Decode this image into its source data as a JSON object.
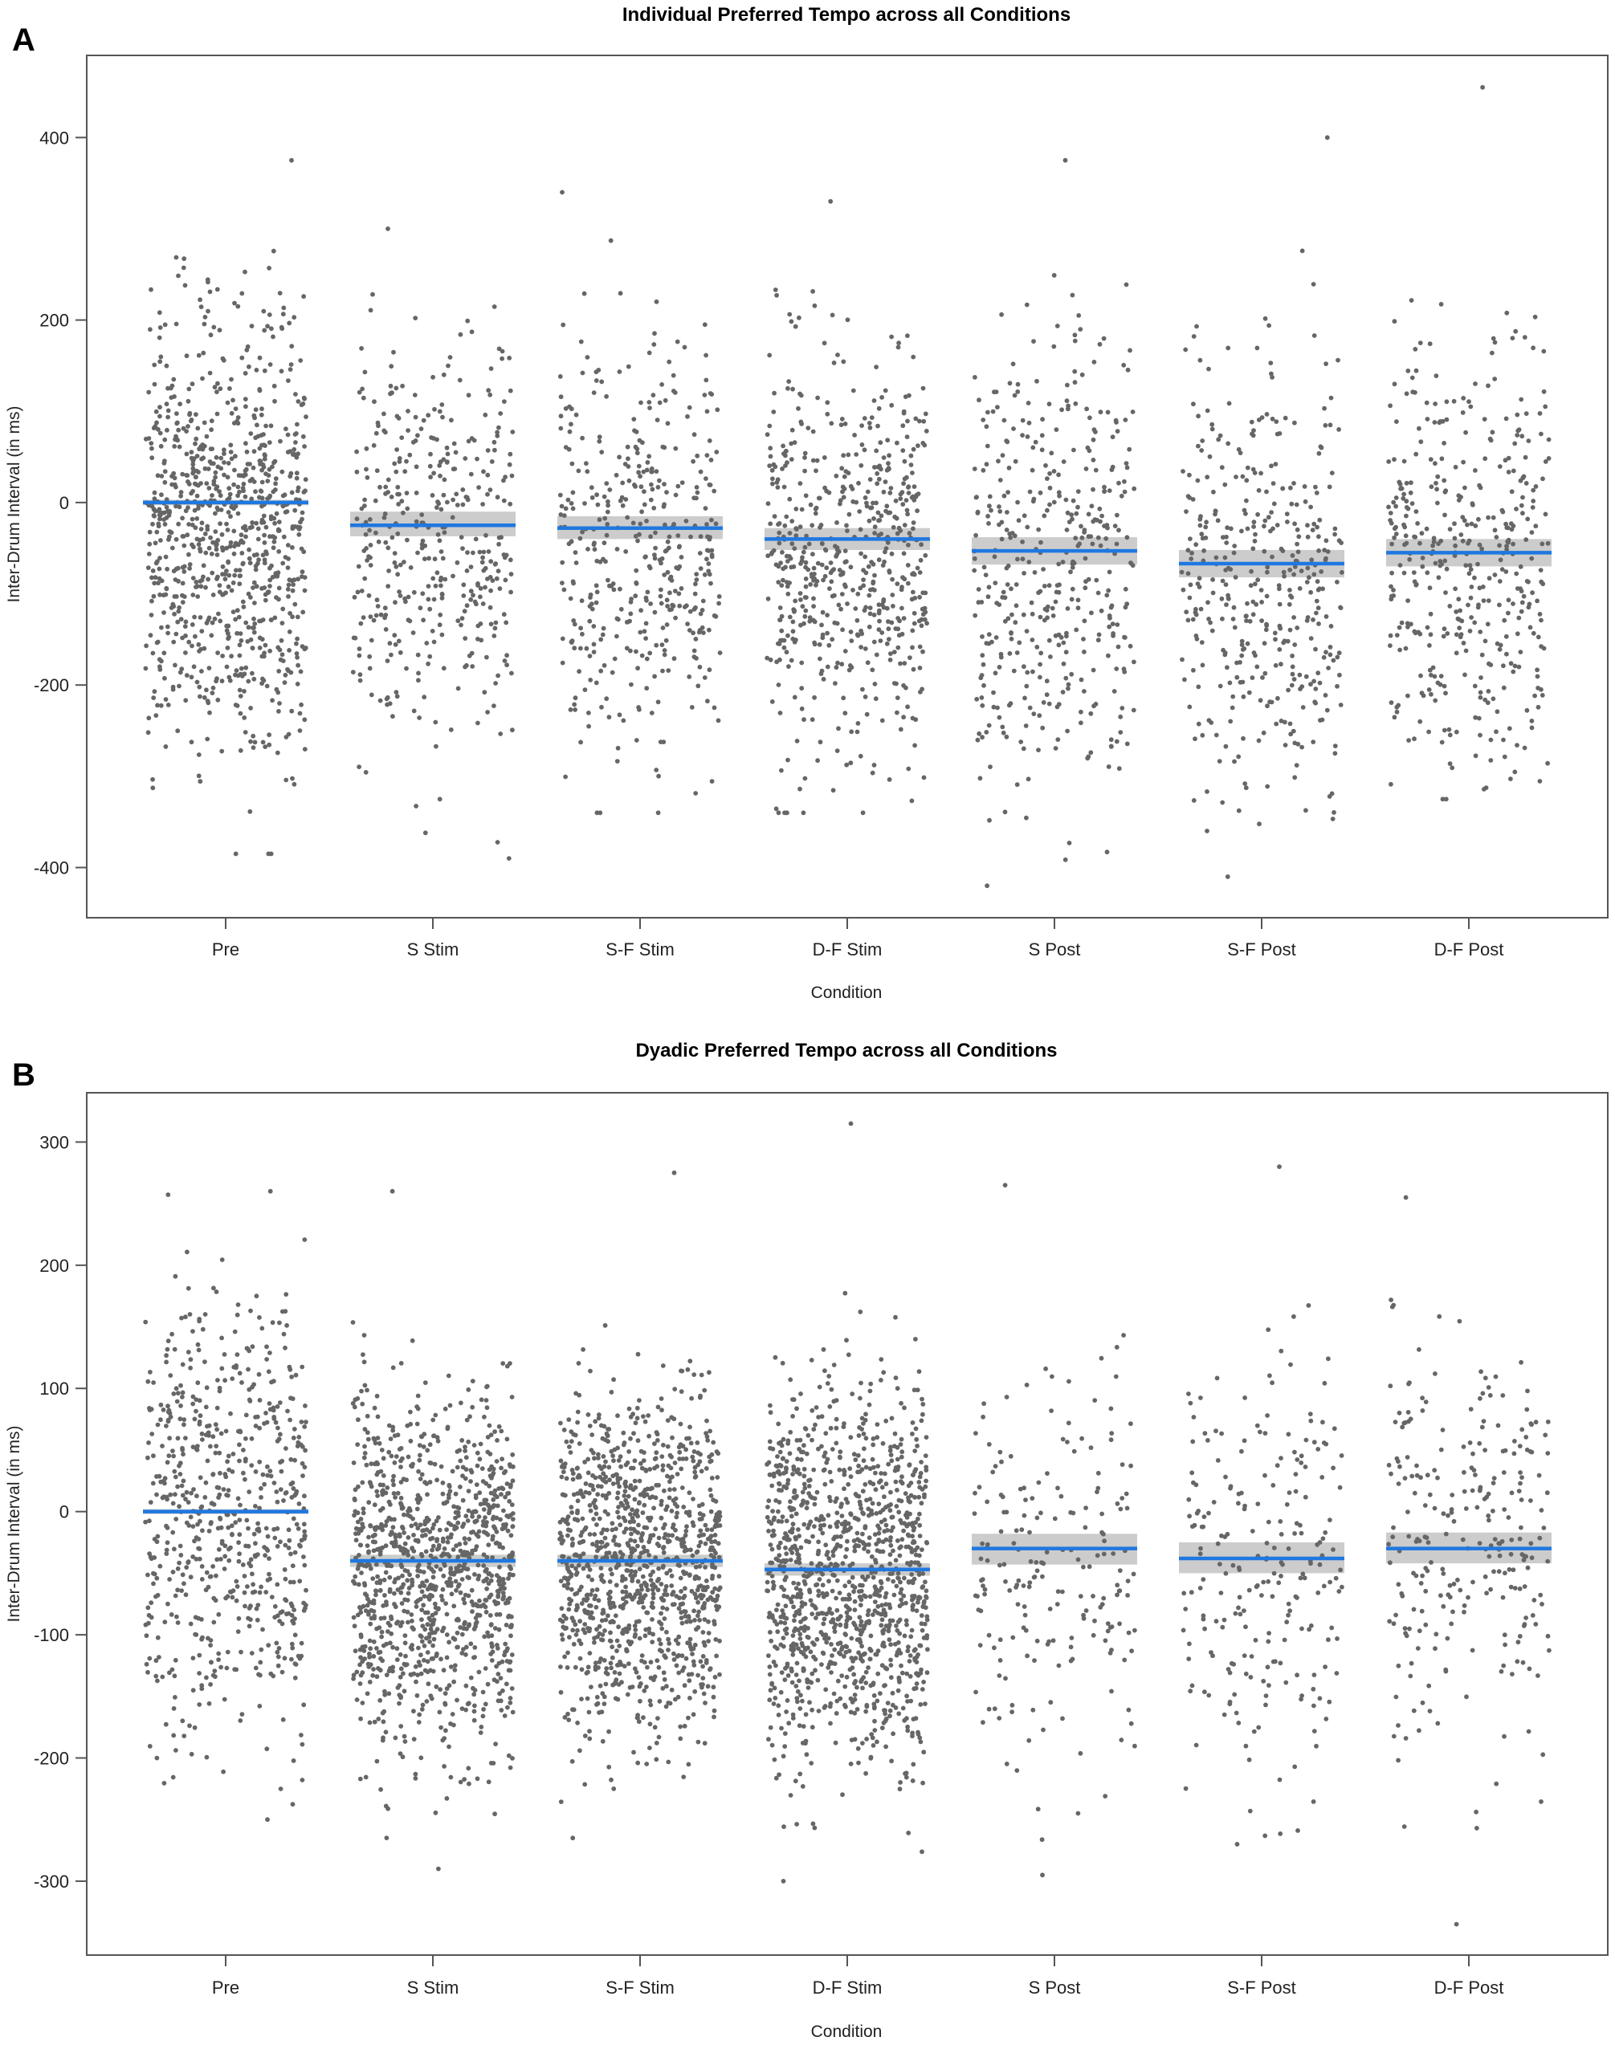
{
  "chart_data": [
    {
      "panel_label": "A",
      "type": "scatter",
      "title": "Individual Preferred Tempo across all Conditions",
      "xlabel": "Condition",
      "ylabel": "Inter-Drum Interval (in ms)",
      "categories": [
        "Pre",
        "S Stim",
        "S-F Stim",
        "D-F Stim",
        "S Post",
        "S-F Post",
        "D-F Post"
      ],
      "ylim": [
        -455,
        490
      ],
      "yticks": [
        -400,
        -200,
        0,
        200,
        400
      ],
      "groups": [
        {
          "category": "Pre",
          "n_points": 900,
          "center": -30,
          "sd": 120,
          "min": -385,
          "max": 375,
          "mean": 0,
          "ci": [
            -3,
            3
          ]
        },
        {
          "category": "S Stim",
          "n_points": 400,
          "center": -40,
          "sd": 110,
          "min": -390,
          "max": 300,
          "mean": -25,
          "ci": [
            -37,
            -10
          ]
        },
        {
          "category": "S-F Stim",
          "n_points": 420,
          "center": -50,
          "sd": 110,
          "min": -340,
          "max": 340,
          "mean": -28,
          "ci": [
            -40,
            -15
          ]
        },
        {
          "category": "D-F Stim",
          "n_points": 600,
          "center": -60,
          "sd": 110,
          "min": -340,
          "max": 330,
          "mean": -40,
          "ci": [
            -52,
            -28
          ]
        },
        {
          "category": "S Post",
          "n_points": 420,
          "center": -60,
          "sd": 120,
          "min": -420,
          "max": 375,
          "mean": -53,
          "ci": [
            -68,
            -38
          ]
        },
        {
          "category": "S-F Post",
          "n_points": 400,
          "center": -80,
          "sd": 120,
          "min": -410,
          "max": 400,
          "mean": -67,
          "ci": [
            -82,
            -52
          ]
        },
        {
          "category": "D-F Post",
          "n_points": 420,
          "center": -60,
          "sd": 115,
          "min": -325,
          "max": 455,
          "mean": -55,
          "ci": [
            -70,
            -40
          ]
        }
      ]
    },
    {
      "panel_label": "B",
      "type": "scatter",
      "title": "Dyadic Preferred Tempo across all Conditions",
      "xlabel": "Condition",
      "ylabel": "Inter-Drum Interval (in ms)",
      "categories": [
        "Pre",
        "S Stim",
        "S-F Stim",
        "D-F Stim",
        "S Post",
        "S-F Post",
        "D-F Post"
      ],
      "ylim": [
        -360,
        340
      ],
      "yticks": [
        -300,
        -200,
        -100,
        0,
        100,
        200,
        300
      ],
      "groups": [
        {
          "category": "Pre",
          "n_points": 650,
          "center": -5,
          "sd": 90,
          "min": -250,
          "max": 260,
          "mean": 0,
          "ci": [
            -2,
            2
          ]
        },
        {
          "category": "S Stim",
          "n_points": 1100,
          "center": -45,
          "sd": 70,
          "min": -290,
          "max": 260,
          "mean": -40,
          "ci": [
            -45,
            -35
          ]
        },
        {
          "category": "S-F Stim",
          "n_points": 1100,
          "center": -45,
          "sd": 70,
          "min": -265,
          "max": 275,
          "mean": -40,
          "ci": [
            -45,
            -35
          ]
        },
        {
          "category": "D-F Stim",
          "n_points": 1200,
          "center": -55,
          "sd": 75,
          "min": -300,
          "max": 315,
          "mean": -47,
          "ci": [
            -52,
            -42
          ]
        },
        {
          "category": "S Post",
          "n_points": 200,
          "center": -40,
          "sd": 85,
          "min": -295,
          "max": 265,
          "mean": -30,
          "ci": [
            -43,
            -18
          ]
        },
        {
          "category": "S-F Post",
          "n_points": 230,
          "center": -45,
          "sd": 90,
          "min": -270,
          "max": 280,
          "mean": -38,
          "ci": [
            -50,
            -25
          ]
        },
        {
          "category": "D-F Post",
          "n_points": 260,
          "center": -40,
          "sd": 90,
          "min": -335,
          "max": 255,
          "mean": -30,
          "ci": [
            -42,
            -17
          ]
        }
      ]
    }
  ]
}
